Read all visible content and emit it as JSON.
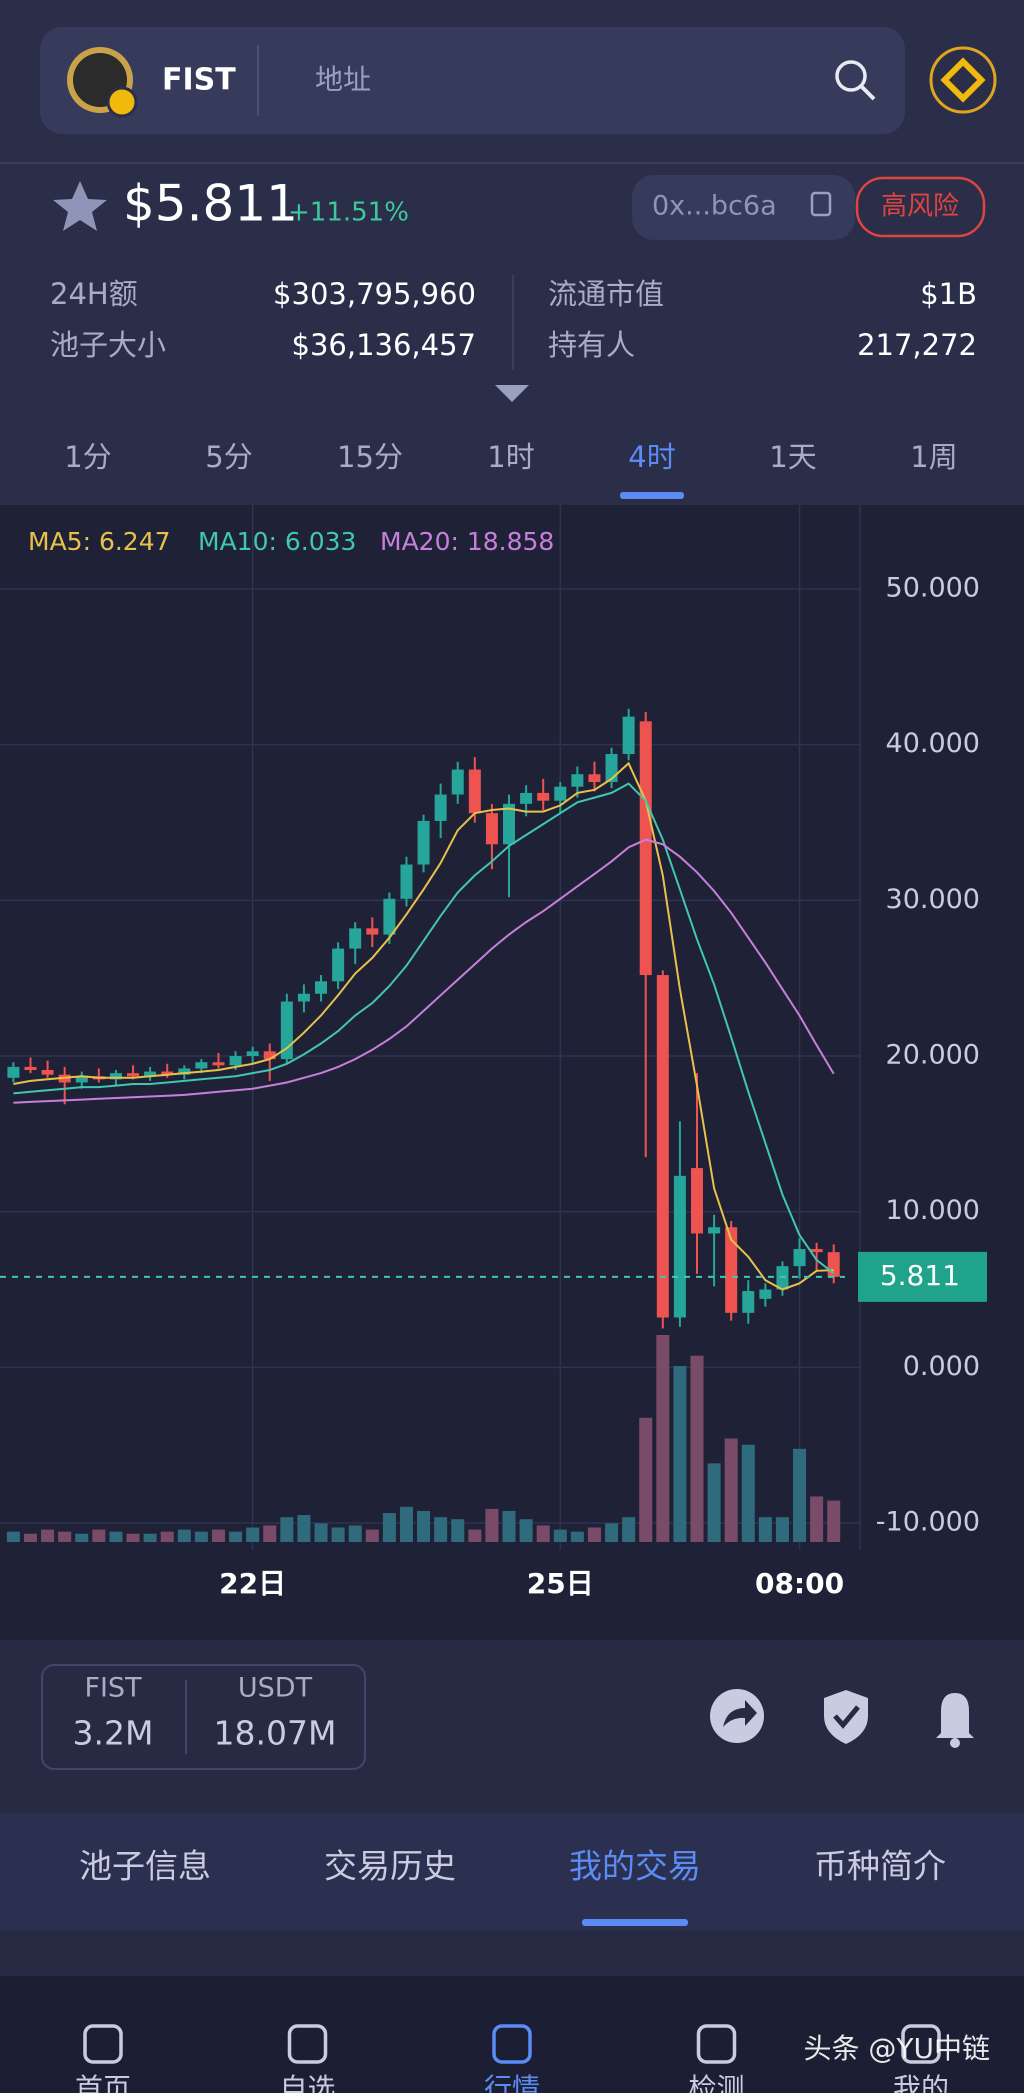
{
  "header": {
    "token": "FIST",
    "search_placeholder": "地址"
  },
  "price": {
    "value": "$5.811",
    "change": "+11.51%",
    "address": "0x...bc6a",
    "risk": "高风险"
  },
  "stats": {
    "rows": [
      [
        "24H额",
        "$303,795,960",
        "流通市值",
        "$1B"
      ],
      [
        "池子大小",
        "$36,136,457",
        "持有人",
        "217,272"
      ]
    ]
  },
  "timeframes": {
    "items": [
      "1分",
      "5分",
      "15分",
      "1时",
      "4时",
      "1天",
      "1周"
    ],
    "active": 4
  },
  "chart_data": {
    "type": "candlestick",
    "categories": [
      null,
      null,
      null,
      null,
      null,
      null,
      null,
      null,
      null,
      null,
      null,
      null,
      null,
      null,
      "22日",
      null,
      null,
      null,
      null,
      null,
      null,
      null,
      null,
      null,
      null,
      null,
      null,
      null,
      null,
      null,
      null,
      null,
      "25日",
      null,
      null,
      null,
      null,
      null,
      null,
      null,
      null,
      null,
      null,
      null,
      null,
      null,
      "08:00",
      null,
      null
    ],
    "open": [
      18.6,
      19.3,
      19.1,
      18.8,
      18.3,
      18.7,
      18.5,
      18.9,
      18.7,
      19.0,
      18.8,
      19.2,
      19.6,
      19.4,
      20.0,
      20.3,
      19.8,
      23.5,
      24.0,
      24.8,
      26.9,
      28.2,
      27.8,
      30.1,
      32.3,
      35.1,
      36.8,
      38.4,
      35.6,
      33.6,
      36.2,
      36.9,
      36.4,
      37.3,
      38.1,
      37.6,
      39.4,
      41.5,
      25.2,
      3.2,
      12.8,
      8.6,
      9.0,
      3.5,
      4.4,
      5.0,
      6.5,
      7.6,
      7.4
    ],
    "high": [
      19.6,
      19.9,
      19.7,
      19.3,
      19.0,
      19.2,
      19.1,
      19.4,
      19.3,
      19.5,
      19.4,
      19.8,
      20.2,
      20.3,
      20.6,
      20.8,
      24.0,
      24.6,
      25.2,
      27.3,
      28.6,
      28.9,
      30.5,
      32.8,
      35.5,
      37.5,
      38.9,
      39.2,
      36.2,
      36.8,
      37.4,
      37.8,
      37.6,
      38.6,
      38.9,
      39.8,
      42.3,
      42.1,
      25.5,
      15.8,
      18.9,
      9.8,
      9.4,
      5.6,
      5.4,
      6.8,
      8.3,
      8.0,
      7.9
    ],
    "low": [
      18.3,
      18.9,
      18.6,
      16.9,
      17.9,
      18.3,
      18.1,
      18.5,
      18.4,
      18.6,
      18.5,
      18.9,
      19.2,
      19.1,
      19.5,
      18.4,
      19.5,
      22.8,
      23.5,
      24.3,
      25.9,
      27.0,
      27.2,
      29.6,
      31.8,
      34.0,
      36.2,
      35.0,
      32.0,
      30.2,
      35.4,
      35.8,
      35.6,
      36.6,
      37.0,
      37.2,
      39.0,
      13.5,
      2.5,
      2.6,
      6.0,
      5.2,
      3.0,
      2.8,
      3.9,
      4.6,
      5.7,
      6.2,
      5.4
    ],
    "close": [
      19.3,
      19.1,
      18.8,
      18.3,
      18.7,
      18.5,
      18.9,
      18.7,
      19.0,
      18.8,
      19.2,
      19.6,
      19.4,
      20.0,
      20.3,
      19.8,
      23.5,
      24.0,
      24.8,
      26.9,
      28.2,
      27.8,
      30.1,
      32.3,
      35.1,
      36.8,
      38.4,
      35.6,
      33.6,
      36.2,
      36.9,
      36.4,
      37.3,
      38.1,
      37.6,
      39.4,
      41.8,
      25.2,
      3.2,
      12.3,
      8.6,
      9.0,
      3.5,
      4.9,
      5.0,
      6.5,
      7.6,
      7.4,
      5.811
    ],
    "volume": [
      5,
      4,
      6,
      5,
      4,
      6,
      5,
      4,
      4,
      5,
      6,
      5,
      6,
      5,
      7,
      8,
      12,
      13,
      9,
      7,
      8,
      6,
      14,
      17,
      15,
      12,
      11,
      6,
      16,
      15,
      11,
      8,
      6,
      5,
      7,
      9,
      12,
      60,
      100,
      85,
      90,
      38,
      50,
      47,
      12,
      12,
      45,
      22,
      20
    ],
    "up_color": "#26a69a",
    "down_color": "#ef5350",
    "up_volume_color": "#2f6b7c",
    "down_volume_color": "#7a4b69",
    "series": [
      {
        "label": "MA5: 6.247",
        "color": "#e8c14a",
        "values": [
          18.2,
          18.4,
          18.5,
          18.6,
          18.7,
          18.6,
          18.6,
          18.6,
          18.7,
          18.8,
          18.9,
          19.0,
          19.1,
          19.3,
          19.5,
          19.8,
          20.5,
          21.5,
          22.6,
          23.9,
          25.3,
          26.3,
          27.6,
          29.1,
          30.7,
          32.4,
          34.5,
          35.6,
          35.8,
          35.9,
          35.7,
          35.7,
          36.1,
          36.9,
          37.1,
          37.8,
          38.8,
          36.4,
          31.6,
          24.3,
          18.1,
          11.5,
          8.2,
          7.1,
          5.6,
          5.0,
          5.4,
          6.2,
          6.247
        ]
      },
      {
        "label": "MA10: 6.033",
        "color": "#3fc7b0",
        "values": [
          17.6,
          17.7,
          17.8,
          17.9,
          18.0,
          18.0,
          18.1,
          18.2,
          18.2,
          18.3,
          18.4,
          18.5,
          18.6,
          18.7,
          18.9,
          19.1,
          19.5,
          20.1,
          20.8,
          21.6,
          22.6,
          23.4,
          24.5,
          25.8,
          27.4,
          29.0,
          30.5,
          31.6,
          32.5,
          33.5,
          34.2,
          34.9,
          35.6,
          36.3,
          36.6,
          36.9,
          37.5,
          36.4,
          33.9,
          30.7,
          27.5,
          24.6,
          21.2,
          17.7,
          14.4,
          11.1,
          8.5,
          6.9,
          6.033
        ]
      },
      {
        "label": "MA20: 18.858",
        "color": "#c77fdc",
        "values": [
          17.0,
          17.05,
          17.1,
          17.15,
          17.2,
          17.25,
          17.3,
          17.35,
          17.4,
          17.45,
          17.5,
          17.6,
          17.7,
          17.8,
          17.9,
          18.1,
          18.3,
          18.6,
          18.9,
          19.3,
          19.8,
          20.4,
          21.1,
          21.9,
          22.9,
          23.9,
          24.9,
          25.9,
          26.9,
          27.8,
          28.6,
          29.3,
          30.1,
          30.9,
          31.7,
          32.5,
          33.4,
          33.9,
          33.6,
          32.8,
          31.8,
          30.6,
          29.2,
          27.6,
          26.0,
          24.3,
          22.6,
          20.7,
          18.858
        ]
      }
    ],
    "current_price": 5.811,
    "ylim": [
      -10,
      50
    ],
    "yticks": [
      {
        "value": -10,
        "label": "-10.000"
      },
      {
        "value": 0,
        "label": "0.000"
      },
      {
        "value": 10,
        "label": "10.000"
      },
      {
        "value": 20,
        "label": "20.000"
      },
      {
        "value": 30,
        "label": "30.000"
      },
      {
        "value": 40,
        "label": "40.000"
      },
      {
        "value": 50,
        "label": "50.000"
      }
    ],
    "grid": true
  },
  "balance": {
    "items": [
      {
        "label": "FIST",
        "value": "3.2M"
      },
      {
        "label": "USDT",
        "value": "18.07M"
      }
    ]
  },
  "tabs": {
    "items": [
      "池子信息",
      "交易历史",
      "我的交易",
      "币种简介"
    ],
    "active": 2
  },
  "nav": {
    "items": [
      "首页",
      "自选",
      "行情",
      "检测",
      "我的"
    ],
    "active": 2
  },
  "watermark": "头条 @YU中链"
}
